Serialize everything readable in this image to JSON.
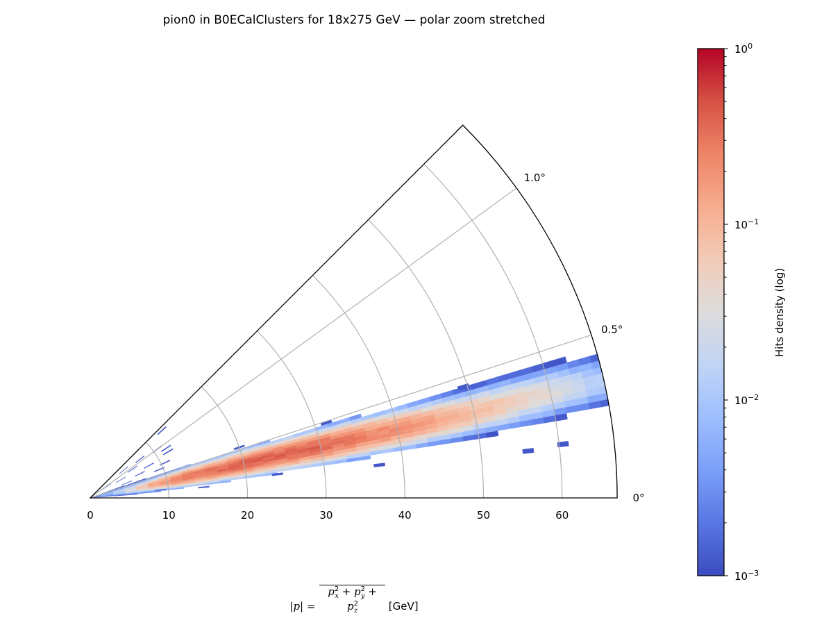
{
  "chart_data": {
    "type": "heatmap",
    "projection": "polar (angular axis stretched)",
    "title": "pion0 in B0ECalClusters for 18x275 GeV — polar zoom stretched",
    "xlabel": "|p| = sqrt(px^2 + py^2 + pz^2) [GeV]",
    "xlabel_parts": {
      "lhs": "|p| = ",
      "unit": " [GeV]"
    },
    "r_range": [
      0,
      67
    ],
    "theta_range_deg": [
      0,
      1.25
    ],
    "r_ticks": [
      "0",
      "10",
      "20",
      "30",
      "40",
      "50",
      "60"
    ],
    "r_tick_values": [
      0,
      10,
      20,
      30,
      40,
      50,
      60
    ],
    "theta_ticks": [
      "0°",
      "0.5°",
      "1.0°"
    ],
    "theta_tick_values": [
      0,
      0.5,
      1.0
    ],
    "grid": true,
    "bins": {
      "r_width": 1.5,
      "theta_width": 0.02
    },
    "ridge_profile": [
      {
        "r": 1,
        "theta_center": 0.36,
        "theta_halfwidth": 0.3,
        "peak": 0.004
      },
      {
        "r": 5,
        "theta_center": 0.33,
        "theta_halfwidth": 0.2,
        "peak": 0.03
      },
      {
        "r": 8,
        "theta_center": 0.33,
        "theta_halfwidth": 0.16,
        "peak": 0.12
      },
      {
        "r": 12,
        "theta_center": 0.34,
        "theta_halfwidth": 0.15,
        "peak": 0.3
      },
      {
        "r": 20,
        "theta_center": 0.35,
        "theta_halfwidth": 0.13,
        "peak": 0.4
      },
      {
        "r": 30,
        "theta_center": 0.35,
        "theta_halfwidth": 0.11,
        "peak": 0.4
      },
      {
        "r": 40,
        "theta_center": 0.35,
        "theta_halfwidth": 0.1,
        "peak": 0.2
      },
      {
        "r": 50,
        "theta_center": 0.35,
        "theta_halfwidth": 0.09,
        "peak": 0.09
      },
      {
        "r": 60,
        "theta_center": 0.36,
        "theta_halfwidth": 0.09,
        "peak": 0.035
      },
      {
        "r": 67,
        "theta_center": 0.36,
        "theta_halfwidth": 0.09,
        "peak": 0.012
      }
    ],
    "outliers": [
      {
        "r": 12.5,
        "theta": 1.2,
        "value": 0.0012
      },
      {
        "r": 10.5,
        "theta": 1.0,
        "value": 0.0012
      },
      {
        "r": 11.5,
        "theta": 0.92,
        "value": 0.0013
      },
      {
        "r": 11.5,
        "theta": 0.85,
        "value": 0.0012
      },
      {
        "r": 8.0,
        "theta": 1.05,
        "value": 0.0012
      },
      {
        "r": 8.5,
        "theta": 0.8,
        "value": 0.0013
      },
      {
        "r": 10.5,
        "theta": 0.7,
        "value": 0.0012
      },
      {
        "r": 7.0,
        "theta": 0.72,
        "value": 0.0012
      },
      {
        "r": 6.5,
        "theta": 0.95,
        "value": 0.0014
      },
      {
        "r": 5.5,
        "theta": 1.1,
        "value": 0.0014
      },
      {
        "r": 5.0,
        "theta": 0.62,
        "value": 0.0015
      },
      {
        "r": 4.5,
        "theta": 0.85,
        "value": 0.0016
      },
      {
        "r": 3.5,
        "theta": 0.5,
        "value": 0.002
      },
      {
        "r": 2.5,
        "theta": 0.95,
        "value": 0.002
      },
      {
        "r": 9.5,
        "theta": 0.62,
        "value": 0.0012
      },
      {
        "r": 9.0,
        "theta": 0.18,
        "value": 0.0013
      },
      {
        "r": 14.5,
        "theta": 0.15,
        "value": 0.0013
      },
      {
        "r": 24.0,
        "theta": 0.2,
        "value": 0.0012
      },
      {
        "r": 20.0,
        "theta": 0.52,
        "value": 0.0012
      },
      {
        "r": 31.5,
        "theta": 0.49,
        "value": 0.0012
      },
      {
        "r": 37.0,
        "theta": 0.18,
        "value": 0.0012
      },
      {
        "r": 49.5,
        "theta": 0.46,
        "value": 0.0012
      },
      {
        "r": 56.0,
        "theta": 0.17,
        "value": 0.0012
      },
      {
        "r": 60.5,
        "theta": 0.18,
        "value": 0.0012
      }
    ],
    "colorbar": {
      "label": "Hits density (log)",
      "scale": "log",
      "range": [
        0.001,
        1
      ],
      "ticks": [
        {
          "base": "10",
          "exp": "0",
          "value": 1
        },
        {
          "base": "10",
          "exp": "−1",
          "value": 0.1
        },
        {
          "base": "10",
          "exp": "−2",
          "value": 0.01
        },
        {
          "base": "10",
          "exp": "−3",
          "value": 0.001
        }
      ],
      "colormap": "coolwarm",
      "stops": [
        "#3b4cc0",
        "#5977e3",
        "#7b9ff9",
        "#9ebeff",
        "#c0d4f5",
        "#dddcdc",
        "#f2cbb7",
        "#f7ac8e",
        "#ee8468",
        "#d65244",
        "#b40426"
      ]
    }
  }
}
